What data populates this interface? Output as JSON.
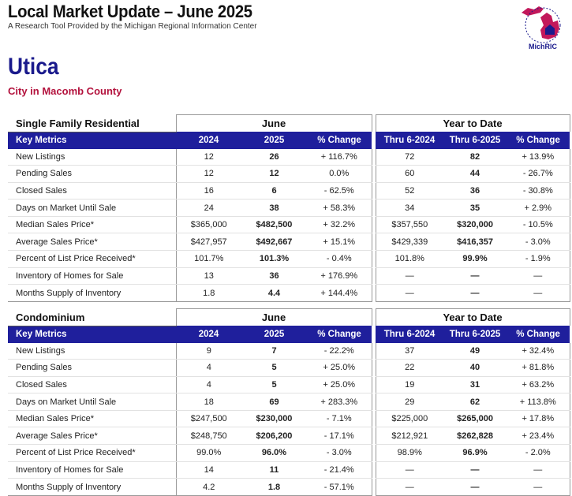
{
  "header": {
    "title": "Local Market Update – June 2025",
    "subtitle": "A Research Tool Provided by the Michigan Regional Information Center",
    "logo_text": "MichRIC"
  },
  "location": {
    "city": "Utica",
    "county": "City in Macomb County"
  },
  "columns": {
    "key_metrics": "Key Metrics",
    "month_group": "June",
    "ytd_group": "Year to Date",
    "c2024": "2024",
    "c2025": "2025",
    "pct": "% Change",
    "thru2024": "Thru 6-2024",
    "thru2025": "Thru 6-2025",
    "pct_ytd": "% Change"
  },
  "single_family": {
    "title": "Single Family Residential",
    "rows": [
      {
        "metric": "New Listings",
        "v2024": "12",
        "v2025": "26",
        "pct": "+ 116.7%",
        "y2024": "72",
        "y2025": "82",
        "ypct": "+ 13.9%"
      },
      {
        "metric": "Pending Sales",
        "v2024": "12",
        "v2025": "12",
        "pct": "0.0%",
        "y2024": "60",
        "y2025": "44",
        "ypct": "- 26.7%"
      },
      {
        "metric": "Closed Sales",
        "v2024": "16",
        "v2025": "6",
        "pct": "- 62.5%",
        "y2024": "52",
        "y2025": "36",
        "ypct": "- 30.8%"
      },
      {
        "metric": "Days on Market Until Sale",
        "v2024": "24",
        "v2025": "38",
        "pct": "+ 58.3%",
        "y2024": "34",
        "y2025": "35",
        "ypct": "+ 2.9%"
      },
      {
        "metric": "Median Sales Price*",
        "v2024": "$365,000",
        "v2025": "$482,500",
        "pct": "+ 32.2%",
        "y2024": "$357,550",
        "y2025": "$320,000",
        "ypct": "- 10.5%"
      },
      {
        "metric": "Average Sales Price*",
        "v2024": "$427,957",
        "v2025": "$492,667",
        "pct": "+ 15.1%",
        "y2024": "$429,339",
        "y2025": "$416,357",
        "ypct": "- 3.0%"
      },
      {
        "metric": "Percent of List Price Received*",
        "v2024": "101.7%",
        "v2025": "101.3%",
        "pct": "- 0.4%",
        "y2024": "101.8%",
        "y2025": "99.9%",
        "ypct": "- 1.9%"
      },
      {
        "metric": "Inventory of Homes for Sale",
        "v2024": "13",
        "v2025": "36",
        "pct": "+ 176.9%",
        "y2024": "—",
        "y2025": "—",
        "ypct": "—"
      },
      {
        "metric": "Months Supply of Inventory",
        "v2024": "1.8",
        "v2025": "4.4",
        "pct": "+ 144.4%",
        "y2024": "—",
        "y2025": "—",
        "ypct": "—"
      }
    ]
  },
  "condominium": {
    "title": "Condominium",
    "rows": [
      {
        "metric": "New Listings",
        "v2024": "9",
        "v2025": "7",
        "pct": "- 22.2%",
        "y2024": "37",
        "y2025": "49",
        "ypct": "+ 32.4%"
      },
      {
        "metric": "Pending Sales",
        "v2024": "4",
        "v2025": "5",
        "pct": "+ 25.0%",
        "y2024": "22",
        "y2025": "40",
        "ypct": "+ 81.8%"
      },
      {
        "metric": "Closed Sales",
        "v2024": "4",
        "v2025": "5",
        "pct": "+ 25.0%",
        "y2024": "19",
        "y2025": "31",
        "ypct": "+ 63.2%"
      },
      {
        "metric": "Days on Market Until Sale",
        "v2024": "18",
        "v2025": "69",
        "pct": "+ 283.3%",
        "y2024": "29",
        "y2025": "62",
        "ypct": "+ 113.8%"
      },
      {
        "metric": "Median Sales Price*",
        "v2024": "$247,500",
        "v2025": "$230,000",
        "pct": "- 7.1%",
        "y2024": "$225,000",
        "y2025": "$265,000",
        "ypct": "+ 17.8%"
      },
      {
        "metric": "Average Sales Price*",
        "v2024": "$248,750",
        "v2025": "$206,200",
        "pct": "- 17.1%",
        "y2024": "$212,921",
        "y2025": "$262,828",
        "ypct": "+ 23.4%"
      },
      {
        "metric": "Percent of List Price Received*",
        "v2024": "99.0%",
        "v2025": "96.0%",
        "pct": "- 3.0%",
        "y2024": "98.9%",
        "y2025": "96.9%",
        "ypct": "- 2.0%"
      },
      {
        "metric": "Inventory of Homes for Sale",
        "v2024": "14",
        "v2025": "11",
        "pct": "- 21.4%",
        "y2024": "—",
        "y2025": "—",
        "ypct": "—"
      },
      {
        "metric": "Months Supply of Inventory",
        "v2024": "4.2",
        "v2025": "1.8",
        "pct": "- 57.1%",
        "y2024": "—",
        "y2025": "—",
        "ypct": "—"
      }
    ]
  },
  "colors": {
    "header_band": "#1f1f9c",
    "city": "#1a1a8c",
    "county": "#b3123d",
    "logo": "#c2185b"
  }
}
